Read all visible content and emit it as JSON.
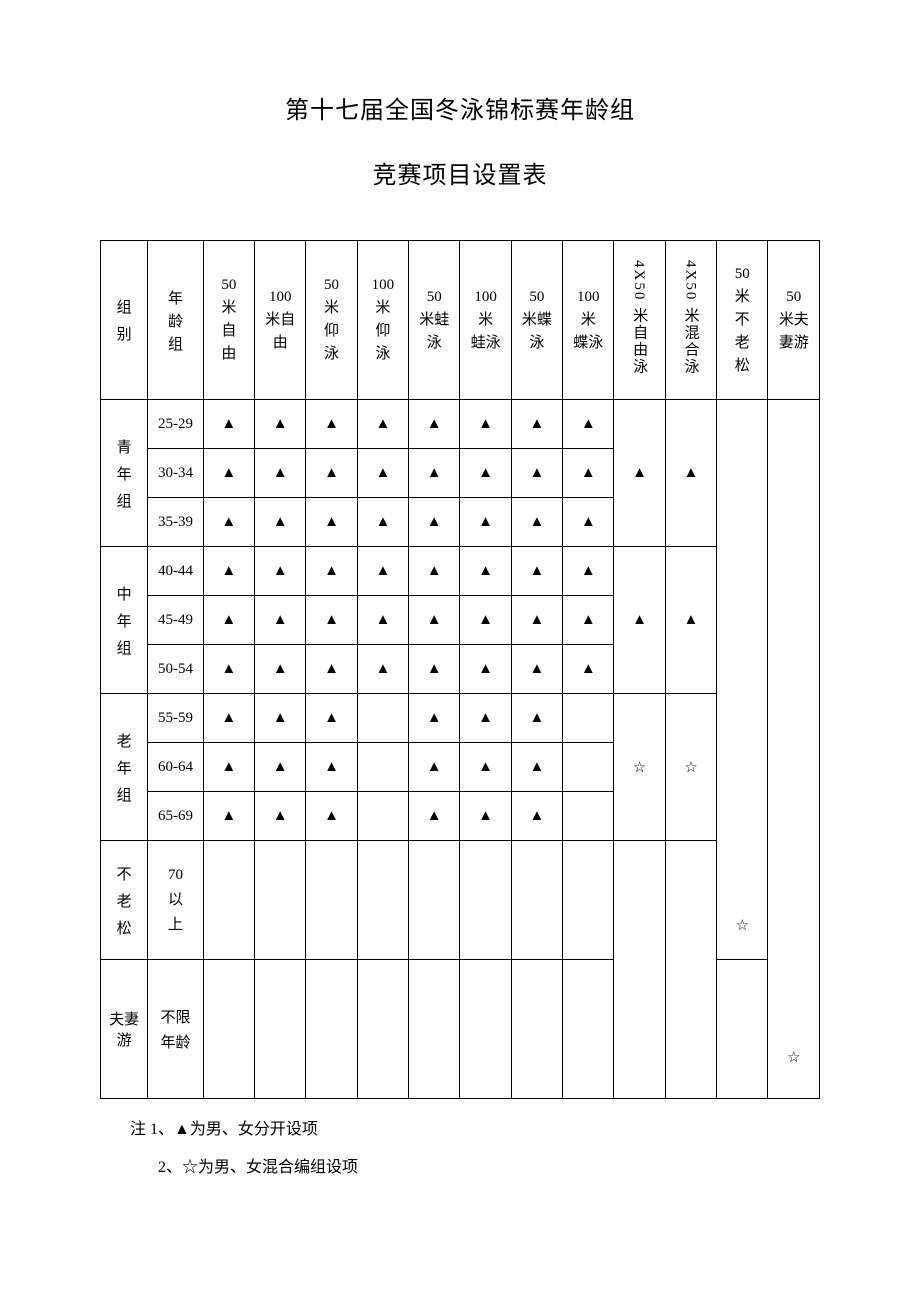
{
  "title_line1": "第十七届全国冬泳锦标赛年龄组",
  "title_line2": "竞赛项目设置表",
  "marks": {
    "triangle": "▲",
    "star": "☆"
  },
  "headers": {
    "group": "组\n别",
    "age": "年\n龄\n组",
    "events": [
      "50\n米\n自\n由",
      "100\n米自\n由",
      "50\n米\n仰\n泳",
      "100\n米\n仰\n泳",
      "50\n米蛙\n泳",
      "100\n米\n蛙泳",
      "50\n米蝶\n泳",
      "100\n米\n蝶泳",
      "4X50 米自由泳",
      "4X50 米混合泳",
      "50\n米\n不\n老\n松",
      "50\n米夫\n妻游"
    ]
  },
  "groups": [
    {
      "name": "青\n年\n组",
      "ages": [
        "25-29",
        "30-34",
        "35-39"
      ],
      "cells": [
        [
          "▲",
          "▲",
          "▲",
          "▲",
          "▲",
          "▲",
          "▲",
          "▲"
        ],
        [
          "▲",
          "▲",
          "▲",
          "▲",
          "▲",
          "▲",
          "▲",
          "▲"
        ],
        [
          "▲",
          "▲",
          "▲",
          "▲",
          "▲",
          "▲",
          "▲",
          "▲"
        ]
      ],
      "relay": [
        "▲",
        "▲"
      ]
    },
    {
      "name": "中\n年\n组",
      "ages": [
        "40-44",
        "45-49",
        "50-54"
      ],
      "cells": [
        [
          "▲",
          "▲",
          "▲",
          "▲",
          "▲",
          "▲",
          "▲",
          "▲"
        ],
        [
          "▲",
          "▲",
          "▲",
          "▲",
          "▲",
          "▲",
          "▲",
          "▲"
        ],
        [
          "▲",
          "▲",
          "▲",
          "▲",
          "▲",
          "▲",
          "▲",
          "▲"
        ]
      ],
      "relay": [
        "▲",
        "▲"
      ]
    },
    {
      "name": "老\n年\n组",
      "ages": [
        "55-59",
        "60-64",
        "65-69"
      ],
      "cells": [
        [
          "▲",
          "▲",
          "▲",
          "",
          "▲",
          "▲",
          "▲",
          ""
        ],
        [
          "▲",
          "▲",
          "▲",
          "",
          "▲",
          "▲",
          "▲",
          ""
        ],
        [
          "▲",
          "▲",
          "▲",
          "",
          "▲",
          "▲",
          "▲",
          ""
        ]
      ],
      "relay": [
        "☆",
        "☆"
      ]
    }
  ],
  "bulaosong": {
    "name": "不\n老\n松",
    "age": "70\n以\n上",
    "mark": "☆"
  },
  "fuqiyou": {
    "name": "夫妻游",
    "age": "不限\n年龄",
    "mark": "☆"
  },
  "notes": {
    "n1": "注 1、▲为男、女分开设项",
    "n2": "2、☆为男、女混合编组设项"
  },
  "style": {
    "font_family": "SimSun",
    "font_size_title": 24,
    "font_size_body": 15,
    "border_color": "#000000",
    "background_color": "#ffffff",
    "text_color": "#000000"
  }
}
